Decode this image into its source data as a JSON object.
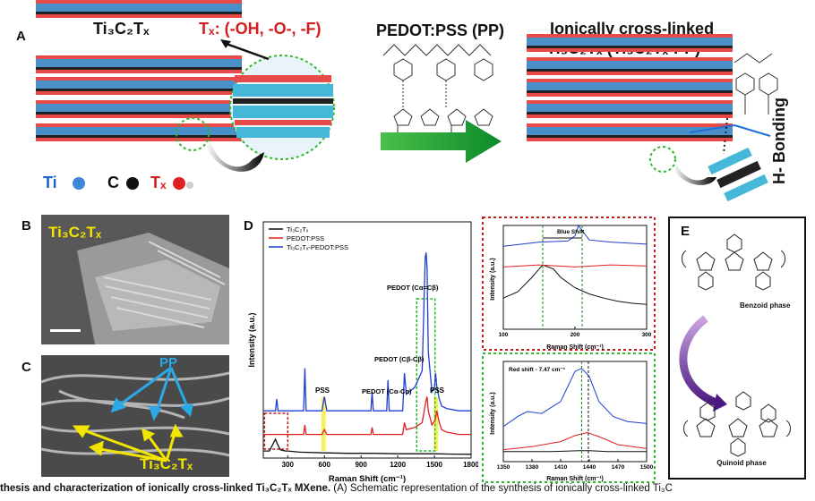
{
  "panel_a": {
    "label": "A",
    "mxene_title": "Ti₃C₂Tₓ",
    "tx_formula": "Tₓ: (-OH, -O-, -F)",
    "pp_title": "PEDOT:PSS (PP)",
    "crosslinked_title_line1": "Ionically cross-linked",
    "crosslinked_title_line2": "Ti₃C₂Tₓ  (Ti₃C₂Tₓ-PP)",
    "hbond_label": "H- Bonding",
    "legend": [
      {
        "symbol": "Ti",
        "color": "#3f86d8"
      },
      {
        "symbol": "C",
        "color": "#111111"
      },
      {
        "symbol": "Tₓ",
        "color": "#e02020"
      }
    ]
  },
  "panel_b": {
    "label": "B",
    "overlay": "Ti₃C₂Tₓ"
  },
  "panel_c": {
    "label": "C",
    "pp_label": "PP",
    "mxene_label": "Ti₃C₂Tₓ"
  },
  "panel_d": {
    "label": "D",
    "main_xlabel": "Raman Shift (cm⁻¹)",
    "main_ylabel": "Intensity (a.u.)",
    "inset_top_xlabel": "Raman Shift (cm⁻¹)",
    "inset_top_ylabel": "Intensity (a.u.)",
    "inset_bottom_xlabel": "Raman Shift (cm⁻¹)",
    "inset_bottom_ylabel": "Intensity (a.u.)",
    "blue_shift_label": "Blue Shift",
    "red_shift_label": "Red shift - 7.47 cm⁻¹",
    "annotations": {
      "pss_left": "PSS",
      "pss_right": "PSS",
      "pedot_cc_alpha_beta": "PEDOT (Cα=Cβ)",
      "pedot_cb_cb": "PEDOT (Cβ-Cβ)",
      "pedot_ca_ca": "PEDOT (Cα-Cα)"
    }
  },
  "panel_e": {
    "label": "E",
    "benzoid": "Benzoid phase",
    "quinoid": "Quinoid phase"
  },
  "caption": {
    "bold": "thesis and characterization of ionically cross-linked Ti₃C₂Tₓ MXene.",
    "rest": " (A) Schematic representation of the synthesis of ionically cross-linked Ti₃C"
  },
  "chart_data": [
    {
      "type": "line",
      "title": "",
      "xlabel": "Raman Shift (cm⁻¹)",
      "ylabel": "Intensity (a.u.)",
      "xlim": [
        100,
        1800
      ],
      "xticks": [
        300,
        600,
        900,
        1200,
        1500,
        1800
      ],
      "legend_position": "top-left",
      "grid": false,
      "series": [
        {
          "name": "Ti₃C₂Tₓ",
          "color": "#111111",
          "x": [
            100,
            150,
            180,
            200,
            215,
            240,
            280,
            300,
            400,
            600,
            800,
            1000,
            1200,
            1400,
            1500,
            1600,
            1800
          ],
          "y": [
            0.03,
            0.03,
            0.06,
            0.08,
            0.06,
            0.035,
            0.03,
            0.03,
            0.025,
            0.022,
            0.02,
            0.02,
            0.018,
            0.018,
            0.018,
            0.017,
            0.016
          ]
        },
        {
          "name": "PEDOT:PSS",
          "color": "#e02020",
          "x": [
            100,
            300,
            430,
            440,
            450,
            580,
            600,
            620,
            980,
            990,
            1000,
            1240,
            1255,
            1270,
            1340,
            1400,
            1430,
            1440,
            1450,
            1480,
            1505,
            1520,
            1540,
            1560,
            1600,
            1700,
            1800
          ],
          "y": [
            0.1,
            0.1,
            0.1,
            0.14,
            0.1,
            0.1,
            0.12,
            0.1,
            0.1,
            0.13,
            0.1,
            0.1,
            0.15,
            0.12,
            0.13,
            0.15,
            0.24,
            0.26,
            0.2,
            0.14,
            0.16,
            0.2,
            0.15,
            0.12,
            0.11,
            0.1,
            0.1
          ]
        },
        {
          "name": "Ti₃C₂Tₓ-PEDOT:PSS",
          "color": "#1f3fd1",
          "x": [
            100,
            200,
            210,
            220,
            300,
            430,
            440,
            450,
            580,
            600,
            620,
            980,
            990,
            1000,
            1110,
            1120,
            1130,
            1240,
            1255,
            1270,
            1340,
            1400,
            1425,
            1432,
            1440,
            1450,
            1480,
            1500,
            1510,
            1520,
            1540,
            1560,
            1600,
            1700,
            1800
          ],
          "y": [
            0.2,
            0.2,
            0.25,
            0.2,
            0.2,
            0.2,
            0.38,
            0.2,
            0.2,
            0.26,
            0.2,
            0.2,
            0.28,
            0.2,
            0.2,
            0.33,
            0.2,
            0.2,
            0.36,
            0.27,
            0.3,
            0.37,
            0.85,
            0.87,
            0.8,
            0.45,
            0.28,
            0.3,
            0.36,
            0.3,
            0.25,
            0.22,
            0.21,
            0.2,
            0.2
          ]
        }
      ]
    },
    {
      "type": "line",
      "xlabel": "Raman Shift (cm⁻¹)",
      "ylabel": "Intensity (a.u.)",
      "xlim": [
        100,
        300
      ],
      "xticks": [
        100,
        200,
        300
      ],
      "series": [
        {
          "name": "Ti₃C₂Tₓ",
          "color": "#111111",
          "x": [
            100,
            120,
            140,
            155,
            170,
            180,
            200,
            220,
            240,
            260,
            280,
            300
          ],
          "y": [
            0.3,
            0.36,
            0.5,
            0.62,
            0.58,
            0.5,
            0.4,
            0.34,
            0.3,
            0.27,
            0.25,
            0.24
          ]
        },
        {
          "name": "PEDOT:PSS",
          "color": "#e02020",
          "x": [
            100,
            150,
            200,
            250,
            300
          ],
          "y": [
            0.6,
            0.62,
            0.6,
            0.62,
            0.61
          ]
        },
        {
          "name": "Ti₃C₂Tₓ-PEDOT:PSS",
          "color": "#1f3fd1",
          "x": [
            100,
            150,
            190,
            200,
            205,
            210,
            220,
            250,
            300
          ],
          "y": [
            0.8,
            0.84,
            0.85,
            0.9,
            1.0,
            0.95,
            0.86,
            0.84,
            0.82
          ]
        }
      ]
    },
    {
      "type": "line",
      "xlabel": "Raman Shift (cm⁻¹)",
      "ylabel": "Intensity (a.u.)",
      "xlim": [
        1350,
        1500
      ],
      "xticks": [
        1350,
        1380,
        1410,
        1440,
        1470,
        1500
      ],
      "series": [
        {
          "name": "Ti₃C₂Tₓ",
          "color": "#111111",
          "x": [
            1350,
            1400,
            1430,
            1440,
            1460,
            1500
          ],
          "y": [
            0.1,
            0.1,
            0.11,
            0.11,
            0.1,
            0.1
          ]
        },
        {
          "name": "PEDOT:PSS",
          "color": "#e02020",
          "x": [
            1350,
            1380,
            1410,
            1425,
            1438,
            1450,
            1470,
            1500
          ],
          "y": [
            0.12,
            0.15,
            0.2,
            0.26,
            0.29,
            0.25,
            0.17,
            0.13
          ]
        },
        {
          "name": "Ti₃C₂Tₓ-PEDOT:PSS",
          "color": "#1f3fd1",
          "x": [
            1350,
            1365,
            1375,
            1390,
            1410,
            1425,
            1432,
            1440,
            1450,
            1465,
            1480,
            1500
          ],
          "y": [
            0.35,
            0.45,
            0.5,
            0.48,
            0.6,
            0.9,
            0.93,
            0.85,
            0.6,
            0.45,
            0.4,
            0.38
          ]
        }
      ]
    }
  ]
}
